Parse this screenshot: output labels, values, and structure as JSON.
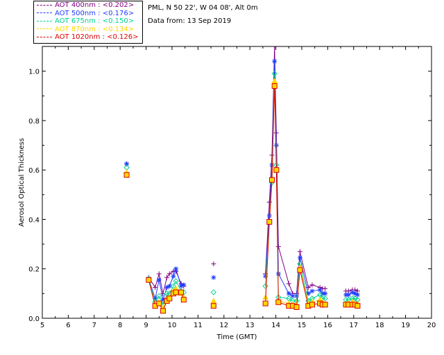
{
  "header": {
    "location": "PML, N 50 22', W 04 08', Alt 0m",
    "date": "Data from: 13 Sep 2019"
  },
  "colors": {
    "aot400": "#800080",
    "aot500": "#1e3cff",
    "aot675": "#00d28c",
    "aot870": "#ffd700",
    "aot1020": "#dc0000"
  },
  "chart_data": {
    "type": "line",
    "xlabel": "Time (GMT)",
    "ylabel": "Aerosol Optical Thickness",
    "xlim": [
      5,
      20
    ],
    "ylim": [
      0.0,
      1.1
    ],
    "xticks": [
      "5",
      "6",
      "7",
      "8",
      "9",
      "10",
      "11",
      "12",
      "13",
      "14",
      "15",
      "16",
      "17",
      "18",
      "19",
      "20"
    ],
    "yticks": [
      "0.0",
      "0.2",
      "0.4",
      "0.6",
      "0.8",
      "1.0"
    ],
    "grid": false,
    "legend_position": "top-left outside",
    "series": [
      {
        "name": "AOT 400nm : <0.202>",
        "label": "AOT  400nm : <0.202>",
        "color": "#800080",
        "marker": "plus",
        "x": [
          8.25,
          9.1,
          9.35,
          9.5,
          9.65,
          9.8,
          9.9,
          10.05,
          10.15,
          10.35,
          10.45,
          11.6,
          13.6,
          13.75,
          13.85,
          13.95,
          14.02,
          14.1,
          14.5,
          14.65,
          14.8,
          14.93,
          15.25,
          15.4,
          15.7,
          15.8,
          15.9,
          16.7,
          16.8,
          16.95,
          17.05,
          17.15
        ],
        "y": [
          0.625,
          0.165,
          0.125,
          0.18,
          0.1,
          0.165,
          0.18,
          0.19,
          0.19,
          0.14,
          0.13,
          0.22,
          0.18,
          0.47,
          0.66,
          1.1,
          0.75,
          0.29,
          0.14,
          0.1,
          0.1,
          0.27,
          0.125,
          0.135,
          0.125,
          0.12,
          0.12,
          0.11,
          0.11,
          0.115,
          0.115,
          0.11
        ]
      },
      {
        "name": "AOT 500nm : <0.176>",
        "label": "AOT  500nm : <0.176>",
        "color": "#1e3cff",
        "marker": "star",
        "x": [
          8.25,
          9.1,
          9.35,
          9.5,
          9.65,
          9.8,
          9.9,
          10.05,
          10.15,
          10.35,
          10.45,
          11.6,
          13.6,
          13.75,
          13.85,
          13.95,
          14.02,
          14.1,
          14.5,
          14.65,
          14.8,
          14.93,
          15.25,
          15.4,
          15.7,
          15.8,
          15.9,
          16.7,
          16.8,
          16.95,
          17.05,
          17.15
        ],
        "y": [
          0.625,
          0.16,
          0.08,
          0.155,
          0.075,
          0.125,
          0.13,
          0.17,
          0.2,
          0.13,
          0.135,
          0.165,
          0.17,
          0.415,
          0.62,
          1.04,
          0.7,
          0.18,
          0.1,
          0.09,
          0.09,
          0.245,
          0.1,
          0.11,
          0.115,
          0.1,
          0.1,
          0.095,
          0.095,
          0.105,
          0.1,
          0.095
        ]
      },
      {
        "name": "AOT 675nm : <0.150>",
        "label": "AOT  675nm : <0.150>",
        "color": "#00d28c",
        "marker": "diamond",
        "x": [
          8.25,
          9.1,
          9.35,
          9.5,
          9.65,
          9.8,
          9.9,
          10.05,
          10.15,
          10.35,
          10.45,
          11.6,
          13.6,
          13.75,
          13.85,
          13.95,
          14.02,
          14.1,
          14.5,
          14.65,
          14.8,
          14.93,
          15.25,
          15.4,
          15.7,
          15.8,
          15.9,
          16.7,
          16.8,
          16.95,
          17.05,
          17.15
        ],
        "y": [
          0.61,
          0.16,
          0.065,
          0.09,
          0.055,
          0.1,
          0.1,
          0.13,
          0.15,
          0.11,
          0.105,
          0.105,
          0.13,
          0.39,
          0.55,
          0.99,
          0.62,
          0.085,
          0.08,
          0.07,
          0.07,
          0.22,
          0.07,
          0.08,
          0.095,
          0.08,
          0.08,
          0.075,
          0.075,
          0.08,
          0.08,
          0.075
        ]
      },
      {
        "name": "AOT 870nm : <0.134>",
        "label": "AOT  870nm : <0.134>",
        "color": "#ffd700",
        "marker": "triangle",
        "x": [
          8.25,
          9.1,
          9.35,
          9.5,
          9.65,
          9.8,
          9.9,
          10.05,
          10.15,
          10.35,
          10.45,
          11.6,
          13.6,
          13.75,
          13.85,
          13.95,
          14.02,
          14.1,
          14.5,
          14.65,
          14.8,
          14.93,
          15.25,
          15.4,
          15.7,
          15.8,
          15.9,
          16.7,
          16.8,
          16.95,
          17.05,
          17.15
        ],
        "y": [
          0.59,
          0.155,
          0.055,
          0.065,
          0.04,
          0.08,
          0.085,
          0.11,
          0.12,
          0.1,
          0.085,
          0.07,
          0.085,
          0.39,
          0.56,
          0.96,
          0.6,
          0.07,
          0.06,
          0.055,
          0.055,
          0.205,
          0.06,
          0.065,
          0.075,
          0.065,
          0.06,
          0.06,
          0.06,
          0.065,
          0.06,
          0.06
        ]
      },
      {
        "name": "AOT 1020nm : <0.126>",
        "label": "AOT 1020nm : <0.126>",
        "color": "#dc0000",
        "marker": "square",
        "x": [
          8.25,
          9.1,
          9.35,
          9.5,
          9.65,
          9.8,
          9.9,
          10.05,
          10.15,
          10.35,
          10.45,
          11.6,
          13.6,
          13.75,
          13.85,
          13.95,
          14.02,
          14.1,
          14.5,
          14.65,
          14.8,
          14.93,
          15.25,
          15.4,
          15.7,
          15.8,
          15.9,
          16.7,
          16.8,
          16.95,
          17.05,
          17.15
        ],
        "y": [
          0.58,
          0.155,
          0.05,
          0.06,
          0.03,
          0.07,
          0.08,
          0.1,
          0.105,
          0.105,
          0.075,
          0.05,
          0.06,
          0.39,
          0.56,
          0.94,
          0.6,
          0.065,
          0.05,
          0.05,
          0.045,
          0.195,
          0.05,
          0.055,
          0.06,
          0.055,
          0.055,
          0.055,
          0.055,
          0.055,
          0.055,
          0.05
        ]
      }
    ]
  }
}
